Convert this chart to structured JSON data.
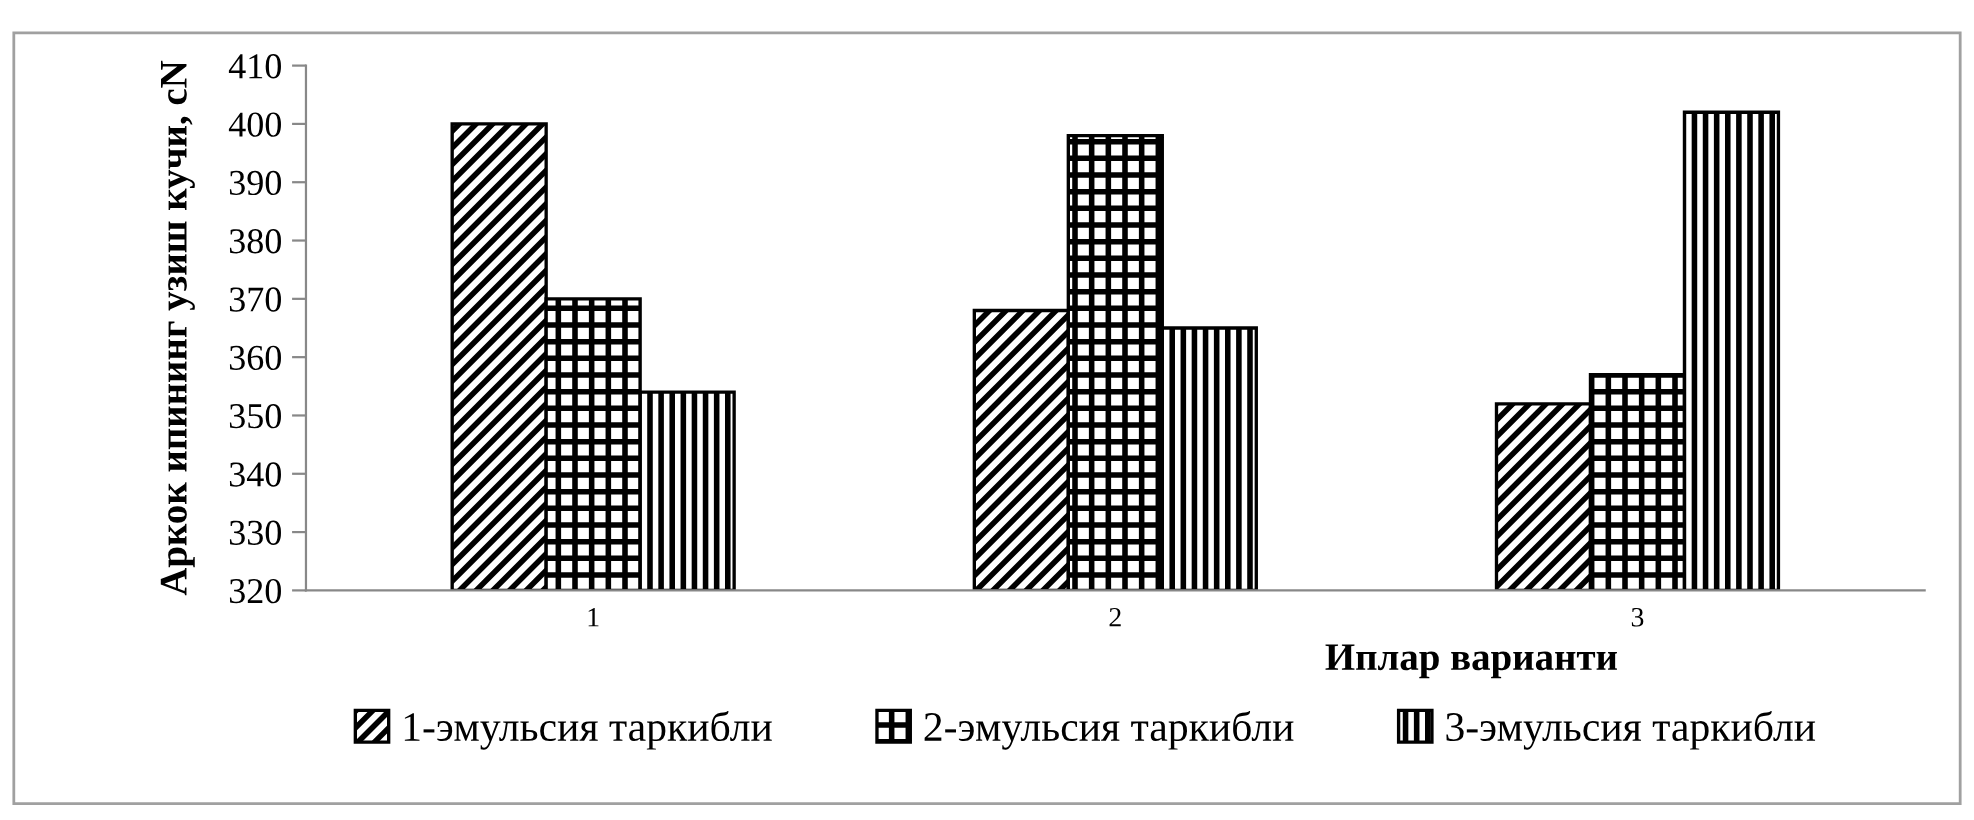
{
  "chart_data": {
    "type": "bar",
    "xlabel": "Иплар варианти",
    "ylabel": "Аркок ипининг узиш кучи, cN",
    "categories": [
      "1",
      "2",
      "3"
    ],
    "series": [
      {
        "name": "1-эмульсия таркибли",
        "color": "#000000",
        "values": [
          400,
          368,
          352
        ]
      },
      {
        "name": "2-эмульсия таркибли",
        "color": "#000000",
        "values": [
          370,
          398,
          357
        ]
      },
      {
        "name": "3-эмульсия таркибли",
        "color": "#000000",
        "values": [
          354,
          365,
          402
        ]
      }
    ],
    "ylim": [
      320,
      410
    ],
    "yticks": [
      320,
      330,
      340,
      350,
      360,
      370,
      380,
      390,
      400,
      410
    ],
    "grid": false,
    "legend": "bottom"
  }
}
